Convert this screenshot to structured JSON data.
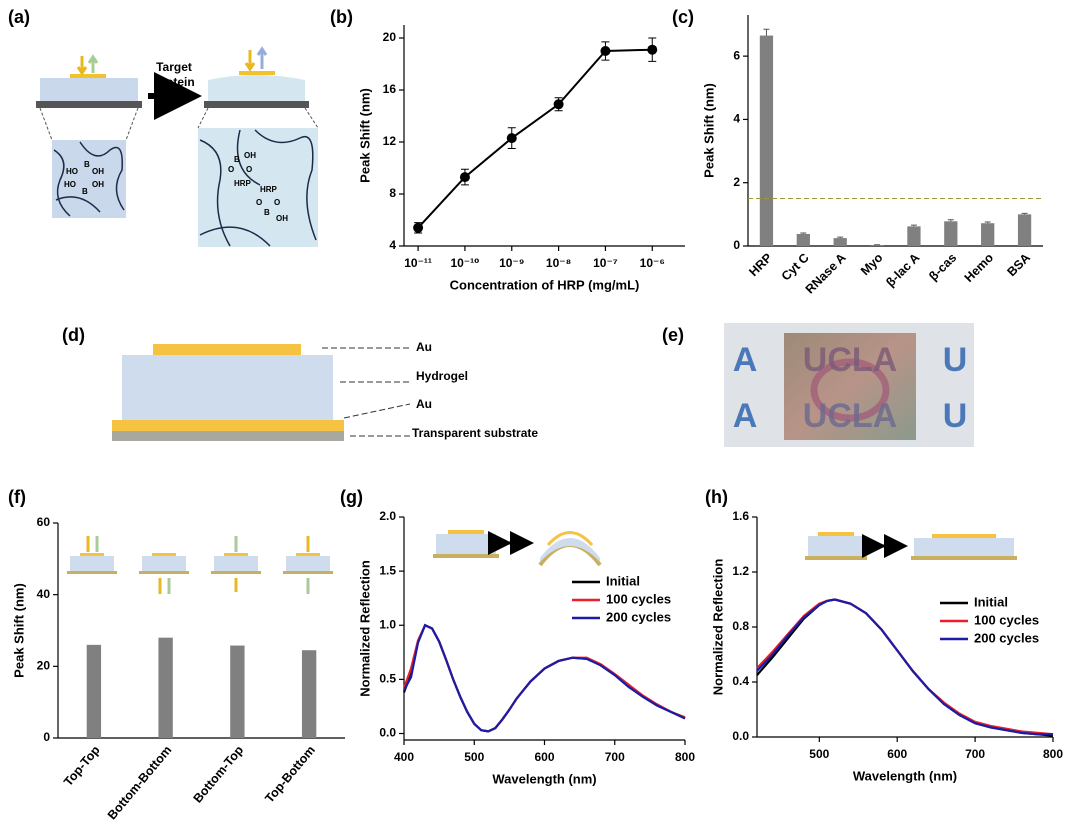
{
  "diagram_a": {
    "panel": "(a)",
    "arrow_label": [
      "Target",
      "Protein"
    ],
    "labels": [
      "HO",
      "B",
      "OH",
      "HO",
      "B",
      "OH",
      "B",
      "OH",
      "O",
      "O",
      "HRP",
      "HRP",
      "O",
      "O",
      "B",
      "OH"
    ]
  },
  "diagram_d": {
    "panel": "(d)",
    "labels": [
      "Au",
      "Hydrogel",
      "Au",
      "Transparent substrate"
    ]
  },
  "photo_e": {
    "panel": "(e)",
    "texts": [
      "A",
      "UCLA",
      "U",
      "A",
      "UCLA",
      "U"
    ]
  },
  "chart_data": [
    {
      "panel": "(b)",
      "type": "line",
      "xscale": "log",
      "x": [
        1e-11,
        1e-10,
        1e-09,
        1e-08,
        1e-07,
        1e-06
      ],
      "series": [
        {
          "color": "#000000",
          "values": [
            5.4,
            9.3,
            12.3,
            14.9,
            19.0,
            19.1
          ],
          "errors": [
            0.4,
            0.6,
            0.8,
            0.5,
            0.7,
            0.9
          ]
        }
      ],
      "markers": true,
      "xlim": [
        5e-12,
        5e-06
      ],
      "xticks": [
        {
          "value": 1e-11,
          "label": "10⁻¹¹"
        },
        {
          "value": 1e-10,
          "label": "10⁻¹⁰"
        },
        {
          "value": 1e-09,
          "label": "10⁻⁹"
        },
        {
          "value": 1e-08,
          "label": "10⁻⁸"
        },
        {
          "value": 1e-07,
          "label": "10⁻⁷"
        },
        {
          "value": 1e-06,
          "label": "10⁻⁶"
        }
      ],
      "ylim": [
        4,
        21
      ],
      "yticks": [
        4,
        8,
        12,
        16,
        20
      ],
      "xlabel": "Concentration of HRP (mg/mL)",
      "ylabel": "Peak Shift (nm)"
    },
    {
      "panel": "(c)",
      "type": "bar",
      "categories": [
        "HRP",
        "Cyt C",
        "RNase A",
        "Myo",
        "β-lac A",
        "β-cas",
        "Hemo",
        "BSA"
      ],
      "values": [
        6.65,
        0.38,
        0.25,
        0.03,
        0.62,
        0.78,
        0.72,
        1.0
      ],
      "errors": [
        0.2,
        0.03,
        0.03,
        0.01,
        0.04,
        0.05,
        0.04,
        0.03
      ],
      "color": "#808080",
      "threshold": 1.5,
      "threshold_color": "#9a9a3a",
      "ylim": [
        0,
        7.3
      ],
      "yticks": [
        0,
        2,
        4,
        6
      ],
      "ylabel": "Peak Shift (nm)"
    },
    {
      "panel": "(f)",
      "type": "bar",
      "categories": [
        "Top-Top",
        "Bottom-Bottom",
        "Bottom-Top",
        "Top-Bottom"
      ],
      "values": [
        26,
        28,
        25.8,
        24.5
      ],
      "color": "#808080",
      "ylim": [
        0,
        60
      ],
      "yticks": [
        0,
        20,
        40,
        60
      ],
      "ylabel": "Peak Shift (nm)"
    },
    {
      "panel": "(g)",
      "type": "line",
      "legend": true,
      "x": [
        400,
        410,
        420,
        430,
        440,
        450,
        460,
        470,
        480,
        490,
        500,
        510,
        520,
        530,
        540,
        550,
        560,
        580,
        600,
        620,
        640,
        660,
        680,
        700,
        720,
        740,
        760,
        780,
        800
      ],
      "series": [
        {
          "name": "Initial",
          "color": "#000000",
          "values": [
            0.38,
            0.55,
            0.85,
            1.0,
            0.97,
            0.85,
            0.68,
            0.5,
            0.34,
            0.2,
            0.09,
            0.03,
            0.02,
            0.05,
            0.13,
            0.22,
            0.32,
            0.48,
            0.6,
            0.67,
            0.7,
            0.69,
            0.63,
            0.54,
            0.43,
            0.34,
            0.26,
            0.2,
            0.14
          ]
        },
        {
          "name": "100 cycles",
          "color": "#e8202a",
          "values": [
            0.42,
            0.6,
            0.86,
            1.0,
            0.97,
            0.85,
            0.68,
            0.5,
            0.34,
            0.2,
            0.09,
            0.03,
            0.02,
            0.05,
            0.13,
            0.22,
            0.32,
            0.48,
            0.6,
            0.67,
            0.7,
            0.7,
            0.64,
            0.55,
            0.45,
            0.35,
            0.27,
            0.2,
            0.15
          ]
        },
        {
          "name": "200 cycles",
          "color": "#1c1ca8",
          "values": [
            0.4,
            0.52,
            0.84,
            1.0,
            0.97,
            0.85,
            0.68,
            0.5,
            0.34,
            0.2,
            0.09,
            0.03,
            0.02,
            0.05,
            0.13,
            0.22,
            0.32,
            0.48,
            0.6,
            0.67,
            0.7,
            0.69,
            0.63,
            0.54,
            0.43,
            0.34,
            0.26,
            0.2,
            0.14
          ]
        }
      ],
      "xlim": [
        400,
        800
      ],
      "xticks": [
        400,
        500,
        600,
        700,
        800
      ],
      "ylim": [
        -0.06,
        2.0
      ],
      "yticks": [
        {
          "value": 0,
          "label": "0.0"
        },
        {
          "value": 0.5,
          "label": "0.5"
        },
        {
          "value": 1.0,
          "label": "1.0"
        },
        {
          "value": 1.5,
          "label": "1.5"
        },
        {
          "value": 2.0,
          "label": "2.0"
        }
      ],
      "xlabel": "Wavelength (nm)",
      "ylabel": "Normalized Reflection"
    },
    {
      "panel": "(h)",
      "type": "line",
      "legend": true,
      "x": [
        420,
        440,
        460,
        480,
        500,
        510,
        520,
        540,
        560,
        580,
        600,
        620,
        640,
        660,
        680,
        700,
        720,
        740,
        760,
        780,
        800
      ],
      "series": [
        {
          "name": "Initial",
          "color": "#000000",
          "values": [
            0.45,
            0.58,
            0.72,
            0.86,
            0.96,
            0.99,
            1.0,
            0.97,
            0.9,
            0.78,
            0.63,
            0.48,
            0.35,
            0.24,
            0.16,
            0.1,
            0.07,
            0.05,
            0.03,
            0.02,
            0.01
          ]
        },
        {
          "name": "100 cycles",
          "color": "#e8202a",
          "values": [
            0.5,
            0.62,
            0.75,
            0.88,
            0.97,
            0.99,
            1.0,
            0.97,
            0.9,
            0.78,
            0.63,
            0.48,
            0.35,
            0.25,
            0.17,
            0.11,
            0.08,
            0.06,
            0.04,
            0.03,
            0.02
          ]
        },
        {
          "name": "200 cycles",
          "color": "#1c1ca8",
          "values": [
            0.48,
            0.6,
            0.74,
            0.87,
            0.96,
            0.99,
            1.0,
            0.97,
            0.9,
            0.78,
            0.63,
            0.48,
            0.35,
            0.24,
            0.16,
            0.1,
            0.07,
            0.05,
            0.03,
            0.02,
            0.02
          ]
        }
      ],
      "xlim": [
        420,
        800
      ],
      "xticks": [
        500,
        600,
        700,
        800
      ],
      "ylim": [
        0,
        1.6
      ],
      "yticks": [
        {
          "value": 0,
          "label": "0.0"
        },
        {
          "value": 0.4,
          "label": "0.4"
        },
        {
          "value": 0.8,
          "label": "0.8"
        },
        {
          "value": 1.2,
          "label": "1.2"
        },
        {
          "value": 1.6,
          "label": "1.6"
        }
      ],
      "xlabel": "Wavelength (nm)",
      "ylabel": "Normalized Reflection"
    }
  ]
}
